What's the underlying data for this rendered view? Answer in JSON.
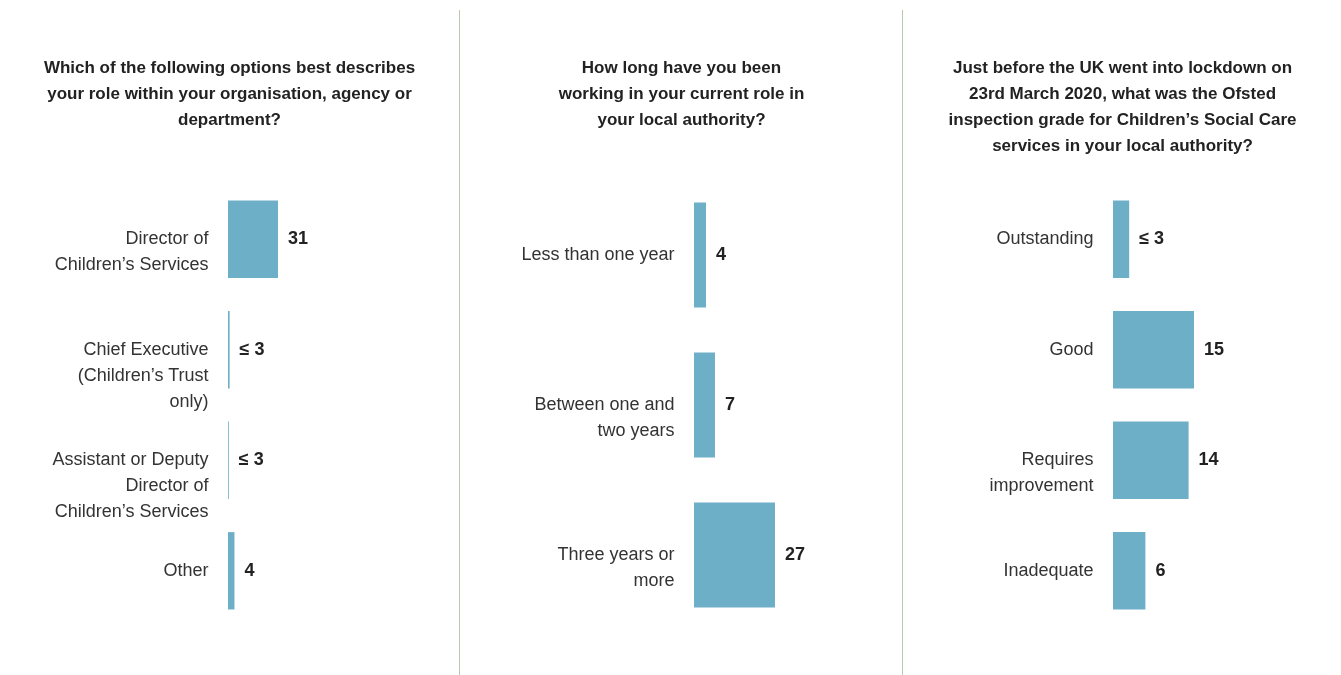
{
  "chart_data": [
    {
      "type": "bar",
      "orientation": "horizontal",
      "title": "Which of the following options best describes\nyour role within your organisation, agency or\ndepartment?",
      "categories": [
        "Director of\nChildren’s Services",
        "Chief Executive\n(Children’s Trust\nonly)",
        "Assistant or Deputy\nDirector of\nChildren’s Services",
        "Other"
      ],
      "values": [
        31,
        1,
        0.5,
        4
      ],
      "value_labels": [
        "31",
        "≤ 3",
        "≤ 3",
        "4"
      ],
      "color": "#6eafc8"
    },
    {
      "type": "bar",
      "orientation": "horizontal",
      "title": "How long have you been\nworking in your current role in\nyour local authority?",
      "categories": [
        "Less than one year",
        "Between one and\ntwo years",
        "Three years or\nmore"
      ],
      "values": [
        4,
        7,
        27
      ],
      "data_labels": true,
      "color": "#6eafc8"
    },
    {
      "type": "bar",
      "orientation": "horizontal",
      "title": "Just before the UK went into lockdown on\n23rd March 2020, what was the Ofsted\ninspection grade for Children’s Social Care\nservices in your local authority?",
      "categories": [
        "Outstanding",
        "Good",
        "Requires\nimprovement",
        "Inadequate"
      ],
      "values": [
        3,
        15,
        14,
        6
      ],
      "value_labels": [
        "≤ 3",
        "15",
        "14",
        "6"
      ],
      "color": "#6eafc8"
    }
  ]
}
